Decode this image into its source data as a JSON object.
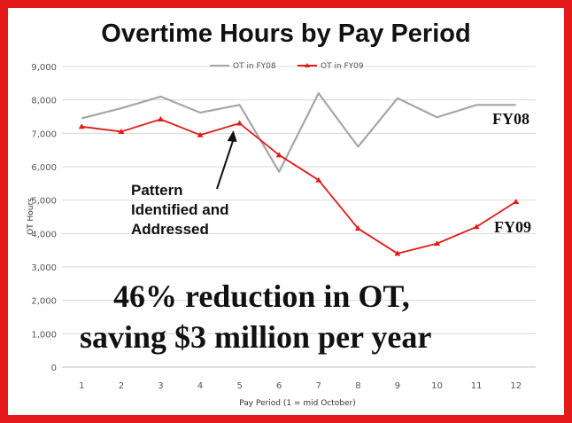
{
  "colors": {
    "frame": "#e41a1a",
    "fy08": "#a6a6a6",
    "fy09": "#e31a1a",
    "grid": "#d9d9d9"
  },
  "chart_data": {
    "type": "line",
    "title": "Overtime Hours by Pay Period",
    "xlabel": "Pay Period (1 = mid October)",
    "ylabel": "OT Hours",
    "ylim": [
      0,
      9000
    ],
    "y_ticks": [
      "0",
      "1,000",
      "2,000",
      "3,000",
      "4,000",
      "5,000",
      "6,000",
      "7,000",
      "8,000",
      "9,000"
    ],
    "x": [
      1,
      2,
      3,
      4,
      5,
      6,
      7,
      8,
      9,
      10,
      11,
      12
    ],
    "grid": true,
    "legend_position": "top-center",
    "series": [
      {
        "name": "OT in FY08",
        "color": "#a6a6a6",
        "values": [
          7450,
          7750,
          8100,
          7620,
          7850,
          5850,
          8200,
          6600,
          8050,
          7480,
          7850,
          7850
        ]
      },
      {
        "name": "OT in FY09",
        "color": "#e31a1a",
        "values": [
          7200,
          7050,
          7420,
          6950,
          7300,
          6350,
          5600,
          4150,
          3400,
          3700,
          4200,
          4950
        ]
      }
    ],
    "series_tags": {
      "fy08": "FY08",
      "fy09": "FY09"
    },
    "annotations": {
      "pattern": [
        "Pattern",
        "Identified and",
        "Addressed"
      ],
      "arrow_target_x": 5,
      "reduction_line1": "46% reduction in OT,",
      "reduction_line2": "saving $3 million per year"
    }
  }
}
